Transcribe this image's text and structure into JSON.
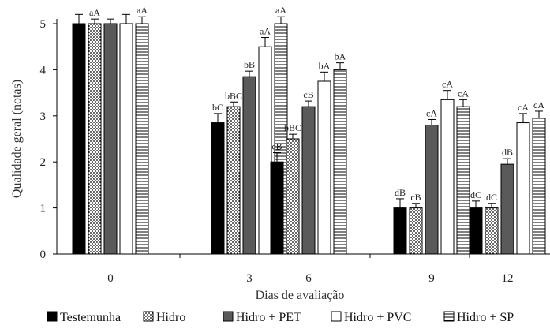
{
  "chart_data": {
    "type": "bar",
    "xlabel": "Dias de avaliação",
    "ylabel": "Qualidade geral (notas)",
    "ylim": [
      0,
      5
    ],
    "yticks": [
      0,
      1,
      2,
      3,
      4,
      5
    ],
    "categories": [
      "0",
      "3",
      "6",
      "9",
      "12"
    ],
    "grid": false,
    "legend_position": "bottom",
    "series": [
      {
        "name": "Testemunha",
        "pattern": "solid-black",
        "values": [
          5.0,
          2.85,
          2.0,
          1.0,
          1.0
        ],
        "errors": [
          0.2,
          0.2,
          0.2,
          0.2,
          0.15
        ],
        "labels": [
          "",
          "bC",
          "cB",
          "dB",
          "dC"
        ]
      },
      {
        "name": "Hidro",
        "pattern": "dots",
        "values": [
          5.0,
          3.2,
          2.5,
          1.0,
          1.0
        ],
        "errors": [
          0.1,
          0.1,
          0.1,
          0.1,
          0.1
        ],
        "labels": [
          "aA",
          "bBC",
          "bBC",
          "cB",
          "dC"
        ]
      },
      {
        "name": "Hidro + PET",
        "pattern": "solid-gray",
        "values": [
          5.0,
          3.85,
          3.2,
          2.8,
          1.95
        ],
        "errors": [
          0.1,
          0.12,
          0.12,
          0.12,
          0.12
        ],
        "labels": [
          "",
          "bB",
          "cB",
          "cA",
          "dB"
        ]
      },
      {
        "name": "Hidro + PVC",
        "pattern": "white",
        "values": [
          5.0,
          4.5,
          3.75,
          3.35,
          2.85
        ],
        "errors": [
          0.2,
          0.2,
          0.2,
          0.2,
          0.2
        ],
        "labels": [
          "",
          "aA",
          "bA",
          "cA",
          "cA"
        ]
      },
      {
        "name": "Hidro + SP",
        "pattern": "hlines",
        "values": [
          5.0,
          5.0,
          4.0,
          3.2,
          2.95
        ],
        "errors": [
          0.15,
          0.15,
          0.15,
          0.15,
          0.15
        ],
        "labels": [
          "aA",
          "aA",
          "bA",
          "cA",
          "cA"
        ]
      }
    ]
  }
}
